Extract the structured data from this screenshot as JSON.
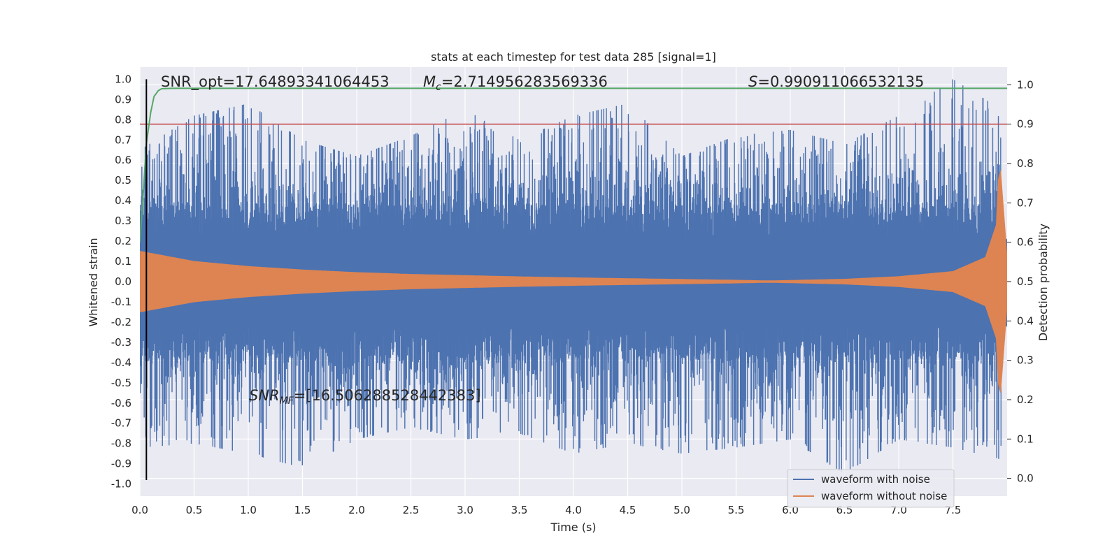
{
  "chart_data": {
    "type": "line",
    "title": "stats at each timestep for test data 285 [signal=1]",
    "xlabel": "Time (s)",
    "ylabel": "Whitened strain",
    "y2label": "Detection probability",
    "xlim": [
      0.0,
      8.0
    ],
    "ylim": [
      -1.06,
      1.06
    ],
    "y2lim": [
      -0.045,
      1.045
    ],
    "x_ticks": [
      0.0,
      0.5,
      1.0,
      1.5,
      2.0,
      2.5,
      3.0,
      3.5,
      4.0,
      4.5,
      5.0,
      5.5,
      6.0,
      6.5,
      7.0,
      7.5
    ],
    "x_tick_labels": [
      "0.0",
      "0.5",
      "1.0",
      "1.5",
      "2.0",
      "2.5",
      "3.0",
      "3.5",
      "4.0",
      "4.5",
      "5.0",
      "5.5",
      "6.0",
      "6.5",
      "7.0",
      "7.5"
    ],
    "y_ticks": [
      1.0,
      0.9,
      0.8,
      0.7,
      0.6,
      0.5,
      0.4,
      0.3,
      0.2,
      0.1,
      0.0,
      -0.1,
      -0.2,
      -0.3,
      -0.4,
      -0.5,
      -0.6,
      -0.7,
      -0.8,
      -0.9,
      -1.0
    ],
    "y_tick_labels": [
      "1.0",
      "0.9",
      "0.8",
      "0.7",
      "0.6",
      "0.5",
      "0.4",
      "0.3",
      "0.2",
      "0.1",
      "0.0",
      "-0.1",
      "-0.2",
      "-0.3",
      "-0.4",
      "-0.5",
      "-0.6",
      "-0.7",
      "-0.8",
      "-0.9",
      "-1.0"
    ],
    "y2_ticks": [
      1.0,
      0.9,
      0.8,
      0.7,
      0.6,
      0.5,
      0.4,
      0.3,
      0.2,
      0.1,
      0.0
    ],
    "y2_tick_labels": [
      "1.0",
      "0.9",
      "0.8",
      "0.7",
      "0.6",
      "0.5",
      "0.4",
      "0.3",
      "0.2",
      "0.1",
      "0.0"
    ],
    "grid": true,
    "legend_placement": "lower-right",
    "series": [
      {
        "name": "waveform with noise",
        "color": "#4c72b0",
        "axis": "left",
        "x": [
          0.0,
          0.5,
          1.0,
          1.5,
          2.0,
          2.5,
          3.0,
          3.5,
          4.0,
          4.5,
          5.0,
          5.5,
          6.0,
          6.5,
          7.0,
          7.5,
          7.95
        ],
        "upper": [
          0.65,
          0.82,
          0.88,
          0.7,
          0.62,
          0.72,
          0.85,
          0.7,
          0.82,
          0.88,
          0.62,
          0.72,
          0.75,
          0.68,
          0.82,
          1.0,
          0.85
        ],
        "lower": [
          -0.82,
          -0.8,
          -0.85,
          -0.92,
          -0.78,
          -0.72,
          -0.78,
          -0.75,
          -0.85,
          -0.8,
          -0.85,
          -0.82,
          -0.78,
          -0.95,
          -0.78,
          -0.82,
          -0.88
        ]
      },
      {
        "name": "waveform without noise",
        "color": "#dd8452",
        "axis": "left",
        "x": [
          0.0,
          0.5,
          1.0,
          1.5,
          2.0,
          2.5,
          3.0,
          3.5,
          4.0,
          4.5,
          5.0,
          5.5,
          5.8,
          6.0,
          6.5,
          7.0,
          7.5,
          7.8,
          7.9,
          7.93,
          8.0
        ],
        "amplitude": [
          0.15,
          0.1,
          0.075,
          0.058,
          0.045,
          0.036,
          0.03,
          0.024,
          0.019,
          0.015,
          0.011,
          0.007,
          0.004,
          0.006,
          0.012,
          0.025,
          0.05,
          0.12,
          0.28,
          0.62,
          0.12
        ]
      },
      {
        "color": "#55a868",
        "axis": "right",
        "x": [
          0.0,
          0.03,
          0.06,
          0.1,
          0.13,
          0.17,
          0.2,
          0.3,
          0.5,
          1.0,
          2.0,
          4.0,
          6.0,
          8.0
        ],
        "y": [
          0.6,
          0.72,
          0.85,
          0.93,
          0.97,
          0.985,
          0.99,
          0.991,
          0.991,
          0.991,
          0.991,
          0.991,
          0.991,
          0.991
        ]
      },
      {
        "color": "#c44e52",
        "axis": "right",
        "x": [
          0.0,
          8.0
        ],
        "y": [
          0.9,
          0.9
        ]
      },
      {
        "color": "#000000",
        "axis": "left",
        "x": [
          0.06,
          0.06
        ],
        "y": [
          1.0,
          -0.98
        ]
      }
    ],
    "annotations": {
      "snr_opt": "SNR_opt=17.64893341064453",
      "mc_symbol": "M",
      "mc_sub": "c",
      "mc_value": "=2.714956283569336",
      "s_symbol": "S",
      "s_value": "=0.990911066532135",
      "snrmf_symbol": "SNR",
      "snrmf_sub": "MF",
      "snrmf_value": "=[16.506288528442383]"
    }
  }
}
